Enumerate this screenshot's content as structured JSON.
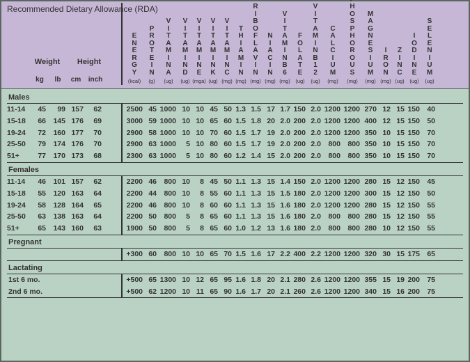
{
  "title": "Recommended Dietary Allowance (RDA)",
  "stub": {
    "weight": "Weight",
    "height": "Height",
    "kg": "kg",
    "lb": "lb",
    "cm": "cm",
    "inch": "inch"
  },
  "cols": [
    {
      "k": "en",
      "name": "ENERGY",
      "unit": "(kcal)",
      "w": "w-en"
    },
    {
      "k": "pr",
      "name": "PROTEIN",
      "unit": "(g)",
      "w": "w-pr"
    },
    {
      "k": "va",
      "name": "VITAMIN A",
      "unit": "(ug)",
      "w": "w-va"
    },
    {
      "k": "vd",
      "name": "VITAMIN D",
      "unit": "(ug)",
      "w": "w-vd"
    },
    {
      "k": "ve",
      "name": "VITAMIN E",
      "unit": "(mga)",
      "w": "w-ve"
    },
    {
      "k": "vk",
      "name": "VITAMIN K",
      "unit": "(ug)",
      "w": "w-vk"
    },
    {
      "k": "vc",
      "name": "VITAMIN C",
      "unit": "(mg)",
      "w": "w-vc"
    },
    {
      "k": "th",
      "name": "THIAMIN",
      "unit": "(mg)",
      "w": "w-th"
    },
    {
      "k": "rf",
      "name": "RIBOFLAVIN",
      "unit": "(mg)",
      "w": "w-rf"
    },
    {
      "k": "ni",
      "name": "NIACIN",
      "unit": "(mg)",
      "w": "w-ni"
    },
    {
      "k": "b6",
      "name": "VITAMIN B6",
      "unit": "(mg)",
      "w": "w-b6"
    },
    {
      "k": "fo",
      "name": "FOLATE",
      "unit": "(ug)",
      "w": "w-fo"
    },
    {
      "k": "b12",
      "name": "VITAMIN B12",
      "unit": "(ug)",
      "w": "w-b12"
    },
    {
      "k": "ca",
      "name": "CALCIUM",
      "unit": "(mg)",
      "w": "w-ca"
    },
    {
      "k": "ph",
      "name": "PHOSPHOROUS",
      "unit": "(mg)",
      "w": "w-ph"
    },
    {
      "k": "mg",
      "name": "MAGNESIUM",
      "unit": "(mg)",
      "w": "w-mg"
    },
    {
      "k": "fe",
      "name": "IRON",
      "unit": "(mg)",
      "w": "w-fe"
    },
    {
      "k": "zn",
      "name": "ZINC",
      "unit": "(ug)",
      "w": "w-zn"
    },
    {
      "k": "io",
      "name": "IODINE",
      "unit": "(ug)",
      "w": "w-io"
    },
    {
      "k": "se",
      "name": "SELENIUM",
      "unit": "(ug)",
      "w": "w-se"
    }
  ],
  "groups": [
    {
      "label": "Males",
      "rows": [
        {
          "age": "11-14",
          "kg": "45",
          "lb": "99",
          "cm": "157",
          "in": "62",
          "v": [
            "2500",
            "45",
            "1000",
            "10",
            "10",
            "45",
            "50",
            "1.3",
            "1.5",
            "17",
            "1.7",
            "150",
            "2.0",
            "1200",
            "1200",
            "270",
            "12",
            "15",
            "150",
            "40"
          ]
        },
        {
          "age": "15-18",
          "kg": "66",
          "lb": "145",
          "cm": "176",
          "in": "69",
          "v": [
            "3000",
            "59",
            "1000",
            "10",
            "10",
            "65",
            "60",
            "1.5",
            "1.8",
            "20",
            "2.0",
            "200",
            "2.0",
            "1200",
            "1200",
            "400",
            "12",
            "15",
            "150",
            "50"
          ]
        },
        {
          "age": "19-24",
          "kg": "72",
          "lb": "160",
          "cm": "177",
          "in": "70",
          "v": [
            "2900",
            "58",
            "1000",
            "10",
            "10",
            "70",
            "60",
            "1.5",
            "1.7",
            "19",
            "2.0",
            "200",
            "2.0",
            "1200",
            "1200",
            "350",
            "10",
            "15",
            "150",
            "70"
          ]
        },
        {
          "age": "25-50",
          "kg": "79",
          "lb": "174",
          "cm": "176",
          "in": "70",
          "v": [
            "2900",
            "63",
            "1000",
            "5",
            "10",
            "80",
            "60",
            "1.5",
            "1.7",
            "19",
            "2.0",
            "200",
            "2.0",
            "800",
            "800",
            "350",
            "10",
            "15",
            "150",
            "70"
          ]
        },
        {
          "age": "51+",
          "kg": "77",
          "lb": "170",
          "cm": "173",
          "in": "68",
          "v": [
            "2300",
            "63",
            "1000",
            "5",
            "10",
            "80",
            "60",
            "1.2",
            "1.4",
            "15",
            "2.0",
            "200",
            "2.0",
            "800",
            "800",
            "350",
            "10",
            "15",
            "150",
            "70"
          ]
        }
      ]
    },
    {
      "label": "Females",
      "rows": [
        {
          "age": "11-14",
          "kg": "46",
          "lb": "101",
          "cm": "157",
          "in": "62",
          "v": [
            "2200",
            "46",
            "800",
            "10",
            "8",
            "45",
            "50",
            "1.1",
            "1.3",
            "15",
            "1.4",
            "150",
            "2.0",
            "1200",
            "1200",
            "280",
            "15",
            "12",
            "150",
            "45"
          ]
        },
        {
          "age": "15-18",
          "kg": "55",
          "lb": "120",
          "cm": "163",
          "in": "64",
          "v": [
            "2200",
            "44",
            "800",
            "10",
            "8",
            "55",
            "60",
            "1.1",
            "1.3",
            "15",
            "1.5",
            "180",
            "2.0",
            "1200",
            "1200",
            "300",
            "15",
            "12",
            "150",
            "50"
          ]
        },
        {
          "age": "19-24",
          "kg": "58",
          "lb": "128",
          "cm": "164",
          "in": "65",
          "v": [
            "2200",
            "46",
            "800",
            "10",
            "8",
            "60",
            "60",
            "1.1",
            "1.3",
            "15",
            "1.6",
            "180",
            "2.0",
            "1200",
            "1200",
            "280",
            "15",
            "12",
            "150",
            "55"
          ]
        },
        {
          "age": "25-50",
          "kg": "63",
          "lb": "138",
          "cm": "163",
          "in": "64",
          "v": [
            "2200",
            "50",
            "800",
            "5",
            "8",
            "65",
            "60",
            "1.1",
            "1.3",
            "15",
            "1.6",
            "180",
            "2.0",
            "800",
            "800",
            "280",
            "15",
            "12",
            "150",
            "55"
          ]
        },
        {
          "age": "51+",
          "kg": "65",
          "lb": "143",
          "cm": "160",
          "in": "63",
          "v": [
            "1900",
            "50",
            "800",
            "5",
            "8",
            "65",
            "60",
            "1.0",
            "1.2",
            "13",
            "1.6",
            "180",
            "2.0",
            "800",
            "800",
            "280",
            "10",
            "12",
            "150",
            "55"
          ]
        }
      ]
    },
    {
      "label": "Pregnant",
      "rows": [
        {
          "age": "",
          "kg": "",
          "lb": "",
          "cm": "",
          "in": "",
          "v": [
            "+300",
            "60",
            "800",
            "10",
            "10",
            "65",
            "70",
            "1.5",
            "1.6",
            "17",
            "2.2",
            "400",
            "2.2",
            "1200",
            "1200",
            "320",
            "30",
            "15",
            "175",
            "65"
          ]
        }
      ]
    },
    {
      "label": "Lactating",
      "rows": [
        {
          "age": "1st 6 mo.",
          "kg": "",
          "lb": "",
          "cm": "",
          "in": "",
          "v": [
            "+500",
            "65",
            "1300",
            "10",
            "12",
            "65",
            "95",
            "1.6",
            "1.8",
            "20",
            "2.1",
            "280",
            "2.6",
            "1200",
            "1200",
            "355",
            "15",
            "19",
            "200",
            "75"
          ]
        },
        {
          "age": "2nd 6 mo.",
          "kg": "",
          "lb": "",
          "cm": "",
          "in": "",
          "v": [
            "+500",
            "62",
            "1200",
            "10",
            "11",
            "65",
            "90",
            "1.6",
            "1.7",
            "20",
            "2.1",
            "260",
            "2.6",
            "1200",
            "1200",
            "340",
            "15",
            "16",
            "200",
            "75"
          ]
        }
      ]
    }
  ],
  "style": {
    "header_bg": "#c6b7d6",
    "body_bg": "#bad2c4",
    "border": "#5a6660",
    "text": "#333333"
  }
}
